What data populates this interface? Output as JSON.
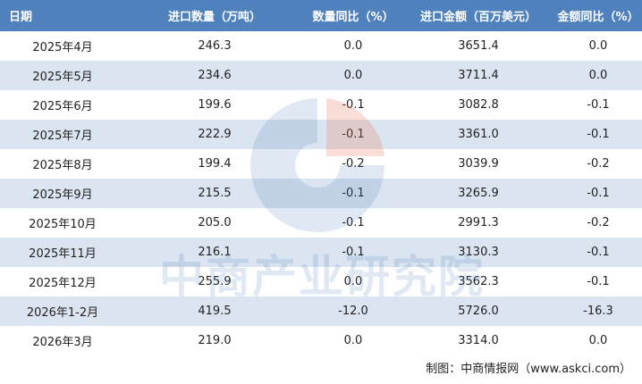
{
  "table": {
    "header": [
      "日期",
      "进口数量（万吨）",
      "数量同比（%）",
      "进口金额（百万美元）",
      "金额同比（%）"
    ],
    "rows": [
      [
        "2025年4月",
        "246.3",
        "0.0",
        "3651.4",
        "0.0"
      ],
      [
        "2025年5月",
        "234.6",
        "0.0",
        "3711.4",
        "0.0"
      ],
      [
        "2025年6月",
        "199.6",
        "-0.1",
        "3082.8",
        "-0.1"
      ],
      [
        "2025年7月",
        "222.9",
        "-0.1",
        "3361.0",
        "-0.1"
      ],
      [
        "2025年8月",
        "199.4",
        "-0.2",
        "3039.9",
        "-0.2"
      ],
      [
        "2025年9月",
        "215.5",
        "-0.1",
        "3265.9",
        "-0.1"
      ],
      [
        "2025年10月",
        "205.0",
        "-0.1",
        "2991.3",
        "-0.2"
      ],
      [
        "2025年11月",
        "216.1",
        "-0.1",
        "3130.3",
        "-0.1"
      ],
      [
        "2025年12月",
        "255.9",
        "0.0",
        "3562.3",
        "-0.1"
      ],
      [
        "2026年1-2月",
        "419.5",
        "-12.0",
        "5726.0",
        "-16.3"
      ],
      [
        "2026年3月",
        "219.0",
        "0.0",
        "3314.0",
        "0.0"
      ]
    ]
  },
  "watermark": "中商产业研究院",
  "footer": "制图：中商情报网（www.askci.com）"
}
